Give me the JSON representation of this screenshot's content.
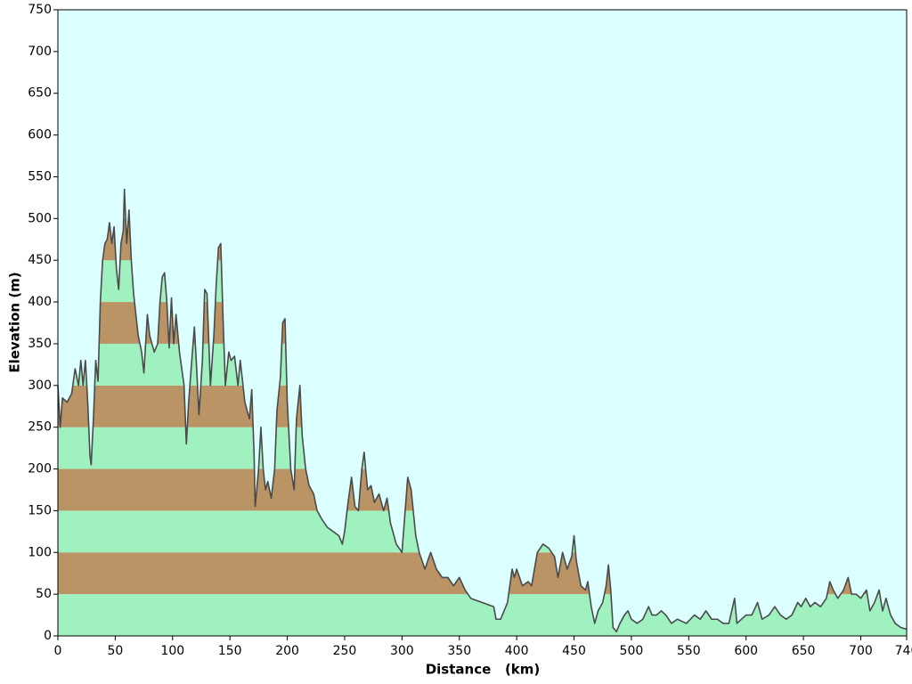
{
  "chart_data": {
    "type": "area",
    "xlabel": "Distance   (km)",
    "ylabel": "Elevation (m)",
    "xlim": [
      0,
      740
    ],
    "ylim": [
      0,
      750
    ],
    "xticks": [
      0,
      50,
      100,
      150,
      200,
      250,
      300,
      350,
      400,
      450,
      500,
      550,
      600,
      650,
      700,
      740
    ],
    "yticks": [
      0,
      50,
      100,
      150,
      200,
      250,
      300,
      350,
      400,
      450,
      500,
      550,
      600,
      650,
      700,
      750
    ],
    "background": "#dcffff",
    "line_color": "#4a4a4a",
    "band_colors": [
      "#9ff2bf",
      "#bb9466"
    ],
    "x": [
      0,
      2,
      4,
      8,
      12,
      15,
      18,
      20,
      22,
      24,
      26,
      28,
      29,
      31,
      33,
      35,
      37,
      39,
      41,
      43,
      45,
      47,
      49,
      51,
      53,
      55,
      57,
      58,
      60,
      62,
      64,
      66,
      70,
      73,
      75,
      78,
      80,
      84,
      87,
      89,
      91,
      93,
      95,
      97,
      99,
      101,
      103,
      106,
      110,
      112,
      114,
      117,
      119,
      121,
      123,
      126,
      128,
      130,
      133,
      136,
      138,
      140,
      142,
      144,
      146,
      149,
      151,
      154,
      157,
      159,
      163,
      167,
      169,
      171,
      172,
      175,
      177,
      179,
      181,
      183,
      186,
      189,
      191,
      194,
      196,
      198,
      200,
      203,
      206,
      208,
      211,
      213,
      216,
      219,
      223,
      226,
      230,
      235,
      240,
      245,
      248,
      250,
      253,
      256,
      259,
      262,
      265,
      267,
      270,
      273,
      276,
      280,
      284,
      287,
      290,
      295,
      300,
      305,
      308,
      312,
      315,
      320,
      325,
      330,
      335,
      340,
      345,
      350,
      355,
      360,
      370,
      380,
      382,
      386,
      392,
      396,
      398,
      400,
      405,
      410,
      413,
      418,
      423,
      428,
      433,
      436,
      440,
      444,
      448,
      450,
      452,
      456,
      460,
      462,
      465,
      468,
      471,
      475,
      478,
      480,
      482,
      484,
      487,
      490,
      494,
      497,
      500,
      505,
      510,
      515,
      518,
      522,
      526,
      530,
      535,
      540,
      548,
      555,
      560,
      565,
      570,
      575,
      580,
      585,
      590,
      592,
      600,
      605,
      610,
      614,
      620,
      625,
      630,
      635,
      640,
      645,
      648,
      652,
      656,
      660,
      665,
      670,
      673,
      676,
      680,
      685,
      689,
      692,
      696,
      700,
      705,
      708,
      712,
      716,
      719,
      722,
      726,
      730,
      735,
      740
    ],
    "values": [
      300,
      250,
      285,
      280,
      290,
      320,
      300,
      330,
      300,
      330,
      280,
      215,
      205,
      260,
      330,
      305,
      400,
      450,
      470,
      475,
      495,
      470,
      490,
      440,
      415,
      470,
      485,
      535,
      470,
      510,
      450,
      410,
      360,
      340,
      315,
      385,
      360,
      340,
      350,
      400,
      430,
      435,
      400,
      345,
      405,
      350,
      385,
      340,
      300,
      230,
      280,
      335,
      370,
      320,
      265,
      330,
      415,
      410,
      300,
      360,
      420,
      465,
      470,
      380,
      300,
      340,
      330,
      335,
      300,
      330,
      280,
      260,
      295,
      220,
      155,
      200,
      250,
      200,
      175,
      185,
      165,
      200,
      270,
      310,
      375,
      380,
      280,
      200,
      175,
      260,
      300,
      240,
      200,
      180,
      170,
      150,
      140,
      130,
      125,
      120,
      110,
      125,
      160,
      190,
      155,
      150,
      200,
      220,
      175,
      180,
      160,
      170,
      150,
      165,
      135,
      110,
      100,
      190,
      175,
      120,
      100,
      80,
      100,
      80,
      70,
      70,
      60,
      70,
      55,
      45,
      40,
      35,
      20,
      20,
      40,
      80,
      70,
      80,
      60,
      65,
      60,
      100,
      110,
      105,
      95,
      70,
      100,
      80,
      95,
      120,
      90,
      60,
      55,
      65,
      35,
      15,
      30,
      40,
      60,
      85,
      55,
      10,
      5,
      15,
      25,
      30,
      20,
      15,
      20,
      35,
      25,
      25,
      30,
      25,
      15,
      20,
      15,
      25,
      20,
      30,
      20,
      20,
      15,
      15,
      45,
      15,
      25,
      25,
      40,
      20,
      25,
      35,
      25,
      20,
      25,
      40,
      35,
      45,
      35,
      40,
      35,
      45,
      65,
      55,
      45,
      55,
      70,
      50,
      50,
      45,
      55,
      30,
      40,
      55,
      30,
      45,
      25,
      15,
      10,
      8
    ]
  }
}
